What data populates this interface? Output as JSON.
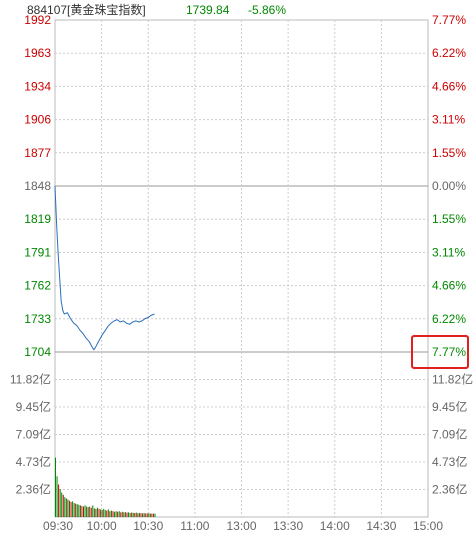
{
  "header": {
    "code_name": "884107[黄金珠宝指数]",
    "price": "1739.84",
    "change": "-5.86%"
  },
  "colors": {
    "red": "#cc0000",
    "green": "#008800",
    "gray": "#666666",
    "line": "#2a6fb8",
    "highlight_box": "#e02020"
  },
  "chart_data": {
    "type": "line",
    "title": "884107[黄金珠宝指数]",
    "price_axis": {
      "left_labels": [
        "1992",
        "1963",
        "1934",
        "1906",
        "1877",
        "1848",
        "1819",
        "1791",
        "1762",
        "1733",
        "1704"
      ],
      "right_labels": [
        "7.77%",
        "6.22%",
        "4.66%",
        "3.11%",
        "1.55%",
        "0.00%",
        "1.55%",
        "3.11%",
        "4.66%",
        "6.22%",
        "7.77%"
      ],
      "ylim": [
        1704,
        1992
      ],
      "prev_close": 1848
    },
    "volume_axis": {
      "left_labels": [
        "11.82亿",
        "9.45亿",
        "7.09亿",
        "4.73亿",
        "2.36亿"
      ],
      "right_labels": [
        "11.82亿",
        "9.45亿",
        "7.09亿",
        "4.73亿",
        "2.36亿"
      ],
      "ylim": [
        0,
        14.18
      ]
    },
    "time_labels": [
      "09:30",
      "10:00",
      "10:30",
      "11:00",
      "13:00",
      "13:30",
      "14:00",
      "14:30",
      "15:00"
    ],
    "session_minutes": 240,
    "price_series": [
      [
        0,
        1848
      ],
      [
        1,
        1815
      ],
      [
        2,
        1790
      ],
      [
        3,
        1768
      ],
      [
        4,
        1748
      ],
      [
        5,
        1740
      ],
      [
        6,
        1737
      ],
      [
        8,
        1738
      ],
      [
        10,
        1733
      ],
      [
        12,
        1729
      ],
      [
        14,
        1727
      ],
      [
        16,
        1723
      ],
      [
        18,
        1720
      ],
      [
        20,
        1716
      ],
      [
        22,
        1713
      ],
      [
        24,
        1708
      ],
      [
        25,
        1706
      ],
      [
        26,
        1708
      ],
      [
        28,
        1713
      ],
      [
        30,
        1718
      ],
      [
        32,
        1722
      ],
      [
        34,
        1726
      ],
      [
        36,
        1729
      ],
      [
        38,
        1731
      ],
      [
        40,
        1732
      ],
      [
        42,
        1730
      ],
      [
        44,
        1731
      ],
      [
        46,
        1729
      ],
      [
        48,
        1728
      ],
      [
        50,
        1730
      ],
      [
        52,
        1731
      ],
      [
        54,
        1730
      ],
      [
        56,
        1731
      ],
      [
        58,
        1733
      ],
      [
        60,
        1734
      ],
      [
        62,
        1736
      ],
      [
        64,
        1737
      ]
    ],
    "volume_series": {
      "values": [
        5.1,
        3.5,
        2.8,
        2.4,
        2.1,
        1.9,
        1.7,
        1.6,
        1.5,
        1.4,
        1.3,
        1.35,
        1.2,
        1.15,
        1.1,
        1.05,
        1.0,
        0.95,
        0.9,
        1.0,
        0.9,
        0.85,
        0.9,
        0.8,
        1.0,
        0.75,
        0.7,
        0.8,
        0.7,
        0.65,
        0.6,
        0.7,
        0.6,
        0.55,
        0.65,
        0.5,
        0.55,
        0.5,
        0.45,
        0.5,
        0.45,
        0.5,
        0.4,
        0.45,
        0.4,
        0.42,
        0.38,
        0.4,
        0.35,
        0.38,
        0.36,
        0.34,
        0.38,
        0.32,
        0.35,
        0.33,
        0.3,
        0.34,
        0.31,
        0.3,
        0.32,
        0.29,
        0.3,
        0.28,
        0.3
      ],
      "up": [
        false,
        false,
        true,
        false,
        false,
        true,
        false,
        false,
        true,
        false,
        true,
        false,
        false,
        true,
        false,
        false,
        true,
        false,
        true,
        false,
        false,
        true,
        false,
        true,
        false,
        false,
        true,
        false,
        true,
        false,
        true,
        false,
        false,
        true,
        false,
        true,
        false,
        true,
        false,
        false,
        true,
        false,
        true,
        false,
        true,
        false,
        true,
        false,
        false,
        true,
        false,
        true,
        false,
        true,
        false,
        true,
        false,
        true,
        false,
        true,
        false,
        true,
        false,
        true,
        false
      ]
    }
  }
}
